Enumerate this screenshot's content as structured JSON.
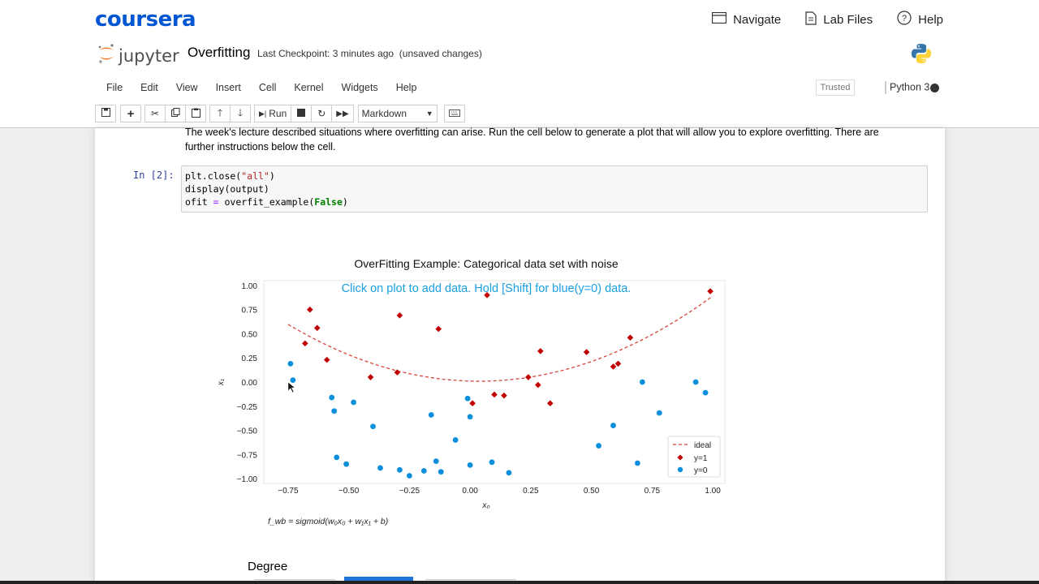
{
  "coursera": {
    "logo": "coursera",
    "nav": [
      {
        "label": "Navigate",
        "icon": "navigate-icon"
      },
      {
        "label": "Lab Files",
        "icon": "file-icon"
      },
      {
        "label": "Help",
        "icon": "help-icon"
      }
    ]
  },
  "jupyter": {
    "logo_text": "jupyter",
    "notebook_name": "Overfitting",
    "checkpoint": "Last Checkpoint: 3 minutes ago",
    "unsaved": "(unsaved changes)",
    "menu": [
      "File",
      "Edit",
      "View",
      "Insert",
      "Cell",
      "Kernel",
      "Widgets",
      "Help"
    ],
    "trusted": "Trusted",
    "kernel": "Python 3",
    "toolbar": {
      "run_label": "Run",
      "cell_type": "Markdown"
    }
  },
  "notebook": {
    "markdown_line1": "The week's lecture described situations where overfitting can arise. Run the cell below to generate a plot that will allow you to explore overfitting. There are",
    "markdown_line2": "further instructions below the cell.",
    "prompt": "In [2]:",
    "code": {
      "line1_fn": "plt.close(",
      "line1_str": "\"all\"",
      "line1_end": ")",
      "line2": "display(output)",
      "line3_a": "ofit ",
      "line3_op": "=",
      "line3_b": " overfit_example(",
      "line3_kw": "False",
      "line3_end": ")"
    },
    "degree_label": "Degree"
  },
  "chart_data": {
    "type": "scatter",
    "title": "OverFitting Example: Categorical data set with noise",
    "instruction": "Click on plot to add data. Hold [Shift] for blue(y=0) data.",
    "xlabel": "x₀",
    "ylabel": "x₁",
    "formula": "f_wb = sigmoid(w₀x₀ + w₁x₁ + b)",
    "xlim": [
      -0.85,
      1.05
    ],
    "ylim": [
      -1.05,
      1.05
    ],
    "xticks": [
      -0.75,
      -0.5,
      -0.25,
      0.0,
      0.25,
      0.5,
      0.75,
      1.0
    ],
    "xtick_labels": [
      "−0.75",
      "−0.50",
      "−0.25",
      "0.00",
      "0.25",
      "0.50",
      "0.75",
      "1.00"
    ],
    "yticks": [
      1.0,
      0.75,
      0.5,
      0.25,
      0.0,
      -0.25,
      -0.5,
      -0.75,
      -1.0
    ],
    "ytick_labels": [
      "1.00",
      "0.75",
      "0.50",
      "0.25",
      "0.00",
      "−0.25",
      "−0.50",
      "−0.75",
      "−1.00"
    ],
    "legend": {
      "position": "lower-right",
      "entries": [
        "ideal",
        "y=1",
        "y=0"
      ]
    },
    "colors": {
      "y1": "#c00000",
      "y0": "#0a8fdc",
      "ideal": "#d9443a",
      "instruction": "#1a9fe0"
    },
    "ideal_curve": {
      "name": "ideal",
      "equation": "x1 = 0.95*x0^2 - 0.07*x0 + 0.01",
      "x_range": [
        -0.75,
        1.0
      ]
    },
    "series": [
      {
        "name": "y=1",
        "marker": "diamond",
        "points": [
          [
            -0.66,
            0.75
          ],
          [
            -0.63,
            0.56
          ],
          [
            -0.68,
            0.4
          ],
          [
            -0.59,
            0.23
          ],
          [
            -0.41,
            0.05
          ],
          [
            -0.29,
            0.69
          ],
          [
            -0.3,
            0.1
          ],
          [
            -0.13,
            0.55
          ],
          [
            0.07,
            0.9
          ],
          [
            0.01,
            -0.22
          ],
          [
            0.1,
            -0.13
          ],
          [
            0.14,
            -0.14
          ],
          [
            0.24,
            0.05
          ],
          [
            0.28,
            -0.03
          ],
          [
            0.29,
            0.32
          ],
          [
            0.33,
            -0.22
          ],
          [
            0.48,
            0.31
          ],
          [
            0.59,
            0.16
          ],
          [
            0.61,
            0.19
          ],
          [
            0.66,
            0.46
          ],
          [
            0.99,
            0.94
          ]
        ]
      },
      {
        "name": "y=0",
        "points": [
          [
            -0.74,
            0.19
          ],
          [
            -0.73,
            0.02
          ],
          [
            -0.57,
            -0.16
          ],
          [
            -0.56,
            -0.3
          ],
          [
            -0.48,
            -0.21
          ],
          [
            -0.4,
            -0.46
          ],
          [
            -0.55,
            -0.78
          ],
          [
            -0.51,
            -0.85
          ],
          [
            -0.37,
            -0.89
          ],
          [
            -0.29,
            -0.91
          ],
          [
            -0.25,
            -0.97
          ],
          [
            -0.19,
            -0.92
          ],
          [
            -0.14,
            -0.82
          ],
          [
            -0.12,
            -0.93
          ],
          [
            -0.16,
            -0.34
          ],
          [
            -0.06,
            -0.6
          ],
          [
            -0.01,
            -0.17
          ],
          [
            0.0,
            -0.36
          ],
          [
            0.0,
            -0.86
          ],
          [
            0.09,
            -0.83
          ],
          [
            0.16,
            -0.94
          ],
          [
            0.53,
            -0.66
          ],
          [
            0.59,
            -0.45
          ],
          [
            0.69,
            -0.84
          ],
          [
            0.71,
            0.0
          ],
          [
            0.78,
            -0.32
          ],
          [
            0.93,
            0.0
          ],
          [
            0.97,
            -0.11
          ]
        ]
      }
    ]
  }
}
